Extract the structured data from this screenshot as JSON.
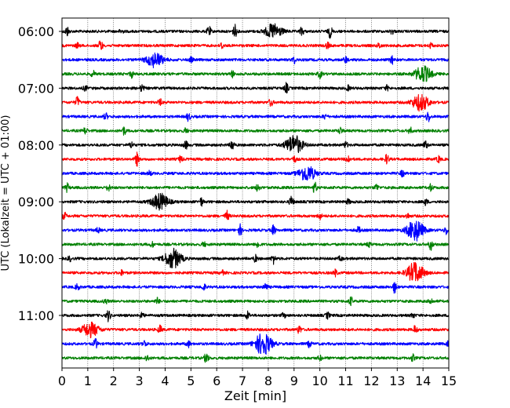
{
  "chart_data": {
    "type": "line",
    "title": "",
    "xlabel": "Zeit  [min]",
    "ylabel": "UTC (Lokalzeit = UTC + 01:00)",
    "xlim": [
      0,
      15
    ],
    "xticks": [
      0,
      1,
      2,
      3,
      4,
      5,
      6,
      7,
      8,
      9,
      10,
      11,
      12,
      13,
      14,
      15
    ],
    "x_grid": true,
    "yticks": [
      {
        "label": "06:00",
        "trace": 0
      },
      {
        "label": "07:00",
        "trace": 4
      },
      {
        "label": "08:00",
        "trace": 8
      },
      {
        "label": "09:00",
        "trace": 12
      },
      {
        "label": "10:00",
        "trace": 16
      },
      {
        "label": "11:00",
        "trace": 20
      }
    ],
    "trace_colors": [
      "#000000",
      "#ff0000",
      "#0000ff",
      "#008000"
    ],
    "traces": [
      {
        "start": "06:00",
        "color": "#000000",
        "events": [
          [
            0.2,
            6
          ],
          [
            2.3,
            3
          ],
          [
            5.7,
            6
          ],
          [
            6.7,
            8
          ],
          [
            8.2,
            9
          ],
          [
            9.3,
            5
          ],
          [
            10.4,
            8
          ],
          [
            12.8,
            3
          ]
        ]
      },
      {
        "start": "06:15",
        "color": "#ff0000",
        "events": [
          [
            0.6,
            3
          ],
          [
            1.5,
            7
          ],
          [
            6.2,
            4
          ],
          [
            10.3,
            4
          ],
          [
            12.3,
            3
          ],
          [
            14.3,
            3
          ]
        ]
      },
      {
        "start": "06:30",
        "color": "#0000ff",
        "events": [
          [
            3.6,
            9
          ],
          [
            5.0,
            3
          ],
          [
            9.0,
            4
          ],
          [
            11.0,
            4
          ],
          [
            12.8,
            5
          ]
        ]
      },
      {
        "start": "06:45",
        "color": "#008000",
        "events": [
          [
            1.2,
            4
          ],
          [
            2.7,
            4
          ],
          [
            6.6,
            4
          ],
          [
            10.0,
            5
          ],
          [
            14.0,
            10
          ]
        ]
      },
      {
        "start": "07:00",
        "color": "#000000",
        "events": [
          [
            0.9,
            3
          ],
          [
            3.1,
            4
          ],
          [
            8.7,
            6
          ],
          [
            11.1,
            3
          ],
          [
            12.6,
            3
          ]
        ]
      },
      {
        "start": "07:15",
        "color": "#ff0000",
        "events": [
          [
            0.6,
            7
          ],
          [
            3.8,
            4
          ],
          [
            8.1,
            5
          ],
          [
            13.9,
            10
          ]
        ]
      },
      {
        "start": "07:30",
        "color": "#0000ff",
        "events": [
          [
            1.7,
            4
          ],
          [
            4.9,
            5
          ],
          [
            10.2,
            3
          ],
          [
            14.2,
            7
          ]
        ]
      },
      {
        "start": "07:45",
        "color": "#008000",
        "events": [
          [
            0.9,
            4
          ],
          [
            2.4,
            5
          ],
          [
            4.8,
            3
          ],
          [
            10.8,
            4
          ],
          [
            13.5,
            4
          ]
        ]
      },
      {
        "start": "08:00",
        "color": "#000000",
        "events": [
          [
            2.7,
            4
          ],
          [
            4.8,
            5
          ],
          [
            6.6,
            7
          ],
          [
            9.0,
            12
          ],
          [
            11.0,
            4
          ],
          [
            14.1,
            5
          ]
        ]
      },
      {
        "start": "08:15",
        "color": "#ff0000",
        "events": [
          [
            2.9,
            8
          ],
          [
            4.6,
            4
          ],
          [
            9.0,
            4
          ],
          [
            11.1,
            5
          ],
          [
            12.6,
            6
          ],
          [
            14.6,
            4
          ]
        ]
      },
      {
        "start": "08:30",
        "color": "#0000ff",
        "events": [
          [
            3.4,
            3
          ],
          [
            9.5,
            10
          ],
          [
            13.2,
            4
          ]
        ]
      },
      {
        "start": "08:45",
        "color": "#008000",
        "events": [
          [
            0.2,
            5
          ],
          [
            1.8,
            4
          ],
          [
            7.6,
            5
          ],
          [
            9.8,
            7
          ],
          [
            12.2,
            4
          ],
          [
            14.3,
            4
          ]
        ]
      },
      {
        "start": "09:00",
        "color": "#000000",
        "events": [
          [
            3.8,
            10
          ],
          [
            5.4,
            5
          ],
          [
            8.9,
            7
          ],
          [
            11.1,
            3
          ],
          [
            14.1,
            4
          ]
        ]
      },
      {
        "start": "09:15",
        "color": "#ff0000",
        "events": [
          [
            0.1,
            4
          ],
          [
            6.4,
            6
          ],
          [
            10.0,
            4
          ],
          [
            13.4,
            3
          ]
        ]
      },
      {
        "start": "09:30",
        "color": "#0000ff",
        "events": [
          [
            1.4,
            3
          ],
          [
            6.9,
            7
          ],
          [
            8.2,
            6
          ],
          [
            11.5,
            4
          ],
          [
            13.7,
            13
          ],
          [
            14.9,
            5
          ]
        ]
      },
      {
        "start": "09:45",
        "color": "#008000",
        "events": [
          [
            3.5,
            3
          ],
          [
            5.5,
            3
          ],
          [
            7.6,
            4
          ],
          [
            11.9,
            3
          ],
          [
            14.3,
            7
          ]
        ]
      },
      {
        "start": "10:00",
        "color": "#000000",
        "events": [
          [
            0.3,
            3
          ],
          [
            4.3,
            12
          ],
          [
            7.5,
            4
          ],
          [
            8.2,
            6
          ],
          [
            10.8,
            3
          ]
        ]
      },
      {
        "start": "10:15",
        "color": "#ff0000",
        "events": [
          [
            2.3,
            3
          ],
          [
            6.2,
            3
          ],
          [
            10.6,
            4
          ],
          [
            13.7,
            13
          ]
        ]
      },
      {
        "start": "10:30",
        "color": "#0000ff",
        "events": [
          [
            0.6,
            4
          ],
          [
            5.5,
            4
          ],
          [
            7.9,
            5
          ],
          [
            12.9,
            7
          ]
        ]
      },
      {
        "start": "10:45",
        "color": "#008000",
        "events": [
          [
            1.7,
            3
          ],
          [
            3.7,
            4
          ],
          [
            11.2,
            5
          ],
          [
            14.3,
            4
          ]
        ]
      },
      {
        "start": "11:00",
        "color": "#000000",
        "events": [
          [
            1.8,
            7
          ],
          [
            3.1,
            4
          ],
          [
            7.2,
            5
          ],
          [
            8.6,
            3
          ],
          [
            10.3,
            4
          ],
          [
            13.6,
            3
          ]
        ]
      },
      {
        "start": "11:15",
        "color": "#ff0000",
        "events": [
          [
            1.1,
            9
          ],
          [
            3.8,
            5
          ],
          [
            9.2,
            5
          ],
          [
            13.7,
            5
          ]
        ]
      },
      {
        "start": "11:30",
        "color": "#0000ff",
        "events": [
          [
            1.3,
            6
          ],
          [
            3.2,
            4
          ],
          [
            4.9,
            4
          ],
          [
            7.8,
            14
          ],
          [
            9.6,
            4
          ],
          [
            15.0,
            4
          ]
        ]
      },
      {
        "start": "11:45",
        "color": "#008000",
        "events": [
          [
            3.3,
            4
          ],
          [
            5.6,
            7
          ],
          [
            10.0,
            3
          ],
          [
            13.6,
            4
          ]
        ]
      }
    ]
  }
}
